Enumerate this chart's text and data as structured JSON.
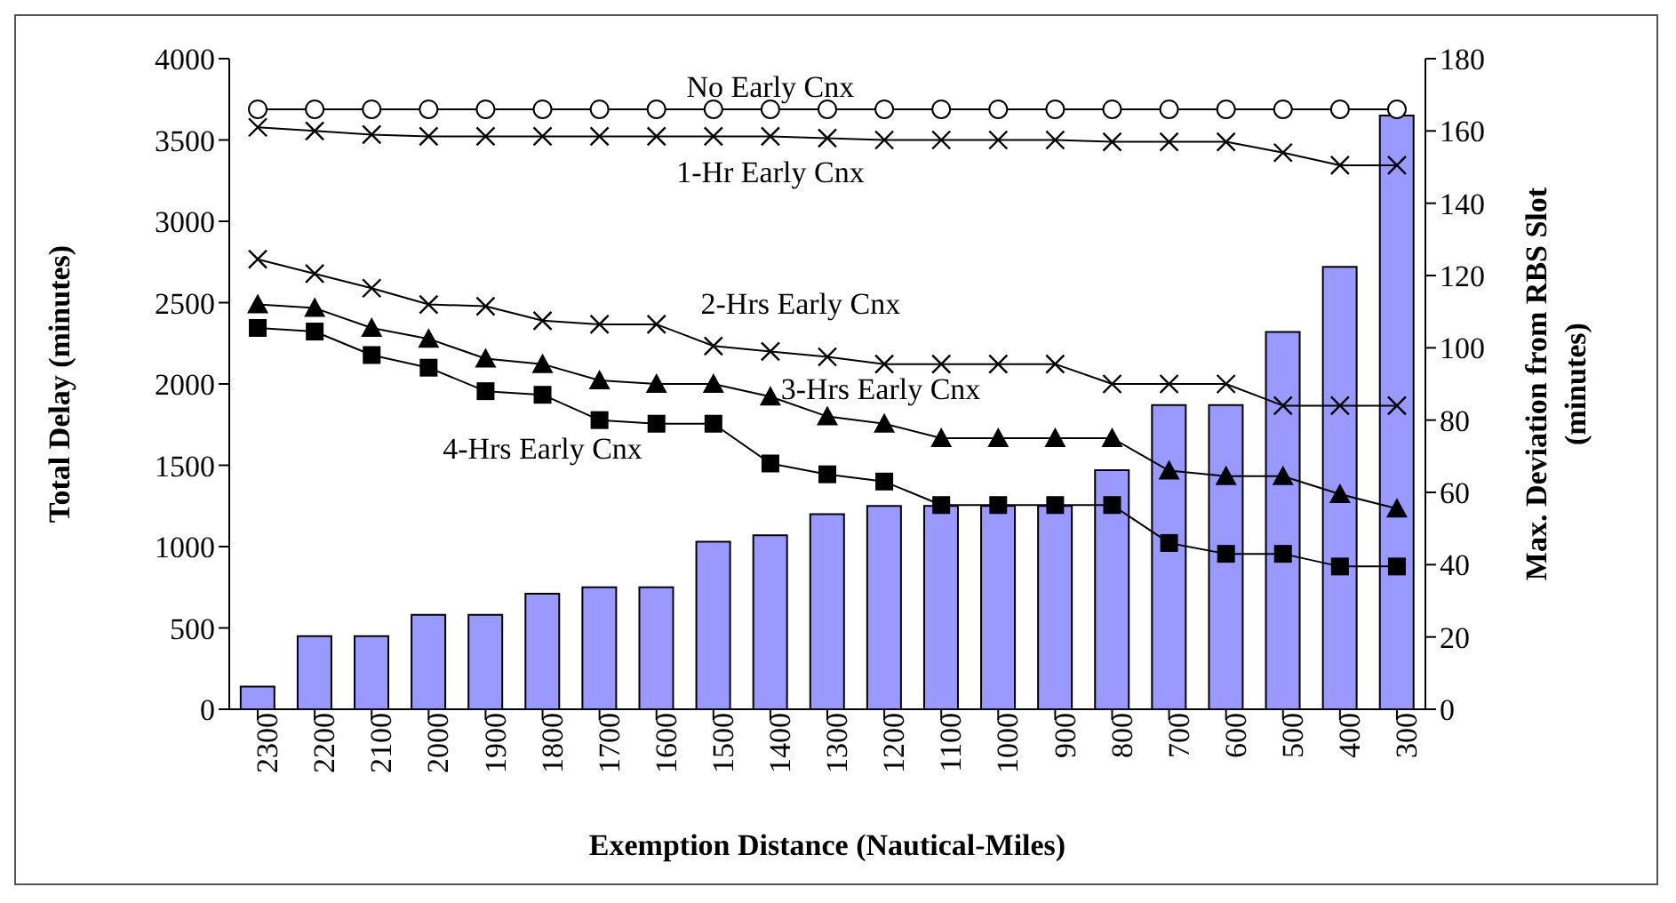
{
  "chart_data": {
    "type": "line",
    "xlabel": "Exemption Distance (Nautical-Miles)",
    "ylabel": "Total Delay (minutes)",
    "y2label": "Max. Deviation from RBS Slot (minutes)",
    "categories": [
      "2300",
      "2200",
      "2100",
      "2000",
      "1900",
      "1800",
      "1700",
      "1600",
      "1500",
      "1400",
      "1300",
      "1200",
      "1100",
      "1000",
      "900",
      "800",
      "700",
      "600",
      "500",
      "400",
      "300"
    ],
    "ylim": [
      0,
      4000
    ],
    "yticks": [
      0,
      500,
      1000,
      1500,
      2000,
      2500,
      3000,
      3500,
      4000
    ],
    "y2lim": [
      0,
      180
    ],
    "y2ticks": [
      0,
      20,
      40,
      60,
      80,
      100,
      120,
      140,
      160,
      180
    ],
    "grid": false,
    "series": [
      {
        "type": "bar",
        "color": "#9999ff",
        "values": [
          140,
          450,
          450,
          580,
          580,
          710,
          750,
          750,
          1030,
          1070,
          1200,
          1250,
          1250,
          1250,
          1250,
          1470,
          1870,
          1870,
          2320,
          2720,
          3650
        ]
      },
      {
        "name": "No Early Cnx",
        "axis": "y2",
        "color": "#000000",
        "marker": "circle",
        "values": [
          166,
          166,
          166,
          166,
          166,
          166,
          166,
          166,
          166,
          166,
          166,
          166,
          166,
          166,
          166,
          166,
          166,
          166,
          166,
          166,
          166
        ]
      },
      {
        "name": "1-Hr Early Cnx",
        "axis": "y2",
        "color": "#000000",
        "marker": "cross",
        "values": [
          161,
          160,
          159,
          158.5,
          158.5,
          158.5,
          158.5,
          158.5,
          158.5,
          158.5,
          158,
          157.5,
          157.5,
          157.5,
          157.5,
          157,
          157,
          157,
          154,
          150.5,
          150.5
        ]
      },
      {
        "name": "2-Hrs Early Cnx",
        "axis": "y2",
        "color": "#000000",
        "marker": "cross",
        "values": [
          124.5,
          120.5,
          116.5,
          112,
          111.5,
          107.5,
          106.5,
          106.5,
          100.5,
          99,
          97.5,
          95.5,
          95.5,
          95.5,
          95.5,
          90,
          90,
          90,
          84,
          84,
          84
        ]
      },
      {
        "name": "3-Hrs Early Cnx",
        "axis": "y2",
        "color": "#000000",
        "marker": "triangle",
        "values": [
          112,
          111,
          105.5,
          102.5,
          97,
          95.5,
          91,
          90,
          90,
          86.5,
          81,
          79,
          75,
          75,
          75,
          75,
          66,
          64.5,
          64.5,
          59.5,
          55.5
        ]
      },
      {
        "name": "4-Hrs Early Cnx",
        "axis": "y2",
        "color": "#000000",
        "marker": "square",
        "values": [
          105.5,
          104.5,
          98,
          94.5,
          88,
          87,
          80,
          79,
          79,
          68,
          65,
          63,
          56.5,
          56.5,
          56.5,
          56.5,
          46,
          43,
          43,
          39.5,
          39.5
        ]
      }
    ]
  }
}
